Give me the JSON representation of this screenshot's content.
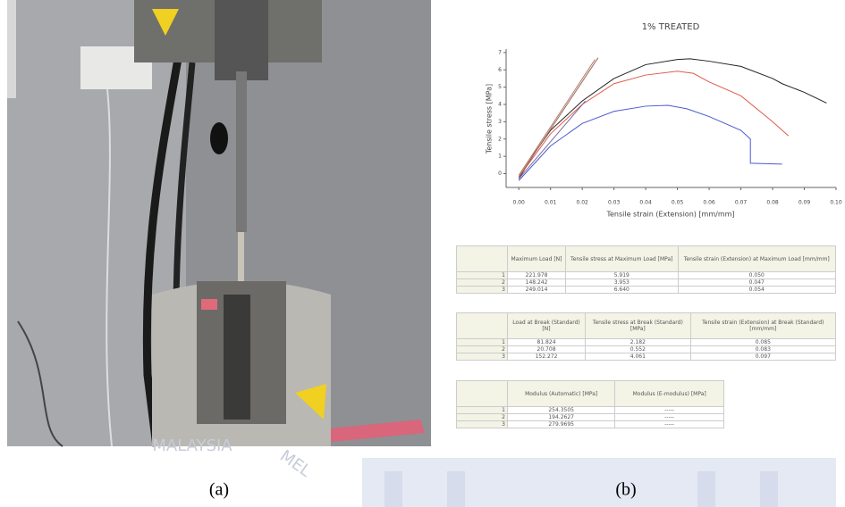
{
  "chart_data": {
    "type": "line",
    "title": "1% TREATED",
    "x_label": "Tensile strain (Extension) [mm/mm]",
    "y_label": "Tensile stress [MPa]",
    "xlim": [
      -0.004,
      0.1
    ],
    "ylim": [
      -0.8,
      7.2
    ],
    "xticks": [
      {
        "value": 0,
        "label": "0.00"
      },
      0.01,
      0.02,
      0.03,
      0.04,
      0.05,
      0.06,
      0.07,
      0.08,
      0.09,
      {
        "value": 0.1,
        "label": "0.10"
      }
    ],
    "yticks": [
      0,
      1,
      2,
      3,
      4,
      5,
      6,
      7
    ],
    "grid": false,
    "series": [
      {
        "color": "#222222",
        "x": [
          0,
          0.005,
          0.01,
          0.02,
          0.03,
          0.04,
          0.05,
          0.054,
          0.06,
          0.07,
          0.08,
          0.083,
          0.09,
          0.097
        ],
        "values": [
          -0.3,
          1.2,
          2.5,
          4.2,
          5.5,
          6.3,
          6.6,
          6.64,
          6.5,
          6.2,
          5.5,
          5.2,
          4.7,
          4.08
        ]
      },
      {
        "color": "#e05a4a",
        "x": [
          0,
          0.01,
          0.02,
          0.03,
          0.04,
          0.05,
          0.055,
          0.06,
          0.07,
          0.08,
          0.085
        ],
        "values": [
          -0.2,
          2.3,
          4.0,
          5.2,
          5.7,
          5.92,
          5.8,
          5.3,
          4.5,
          3.0,
          2.18
        ]
      },
      {
        "color": "#4a5ad0",
        "x": [
          0,
          0.01,
          0.02,
          0.03,
          0.04,
          0.047,
          0.053,
          0.06,
          0.07,
          0.073,
          0.073,
          0.083
        ],
        "values": [
          -0.4,
          1.6,
          2.9,
          3.6,
          3.9,
          3.95,
          3.75,
          3.3,
          2.5,
          2.0,
          0.6,
          0.55
        ]
      },
      {
        "color": "#9a6a5a",
        "x": [
          0,
          0.025
        ],
        "values": [
          -0.2,
          6.7
        ]
      },
      {
        "color": "#b07a6a",
        "x": [
          0,
          0.024
        ],
        "values": [
          -0.1,
          6.6
        ]
      },
      {
        "color": "#7a6aa0",
        "x": [
          0,
          0.021
        ],
        "values": [
          -0.3,
          4.2
        ]
      }
    ]
  },
  "tables": [
    {
      "header": [
        "",
        "Maximum Load [N]",
        "Tensile stress at Maximum Load [MPa]",
        "Tensile strain (Extension) at Maximum Load [mm/mm]"
      ],
      "rows": [
        [
          "1",
          "221.978",
          "5.919",
          "0.050"
        ],
        [
          "2",
          "148.242",
          "3.953",
          "0.047"
        ],
        [
          "3",
          "249.014",
          "6.640",
          "0.054"
        ]
      ]
    },
    {
      "header": [
        "",
        "Load at Break (Standard) [N]",
        "Tensile stress at Break (Standard) [MPa]",
        "Tensile strain (Extension) at Break (Standard) [mm/mm]"
      ],
      "rows": [
        [
          "1",
          "81.824",
          "2.182",
          "0.085"
        ],
        [
          "2",
          "20.708",
          "0.552",
          "0.083"
        ],
        [
          "3",
          "152.272",
          "4.061",
          "0.097"
        ]
      ]
    },
    {
      "header": [
        "",
        "Modulus (Automatic) [MPa]",
        "Modulus (E-modulus) [MPa]"
      ],
      "rows": [
        [
          "1",
          "254.3505",
          "-----"
        ],
        [
          "2",
          "194.2627",
          "-----"
        ],
        [
          "3",
          "279.9695",
          "-----"
        ]
      ]
    }
  ],
  "captions": [
    "(a)",
    "(b)"
  ],
  "watermark": [
    "MALAYSIA",
    "MEL"
  ]
}
